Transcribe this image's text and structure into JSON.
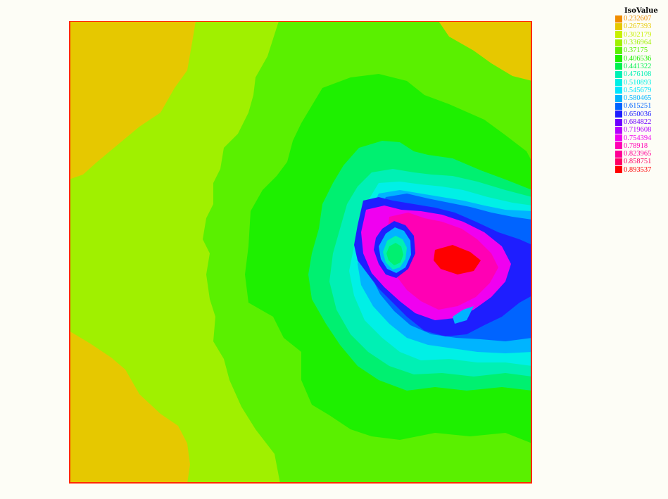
{
  "chart_data": {
    "type": "heatmap",
    "title": "",
    "legend": {
      "title": "IsoValue",
      "placement": "top-right",
      "levels": [
        {
          "label": "0.232607",
          "color": "#f08c00"
        },
        {
          "label": "0.267393",
          "color": "#e6c800"
        },
        {
          "label": "0.302179",
          "color": "#c8f000"
        },
        {
          "label": "0.336964",
          "color": "#a0f000"
        },
        {
          "label": "0.37175",
          "color": "#5af000"
        },
        {
          "label": "0.406536",
          "color": "#1ef000"
        },
        {
          "label": "0.441322",
          "color": "#00f050"
        },
        {
          "label": "0.476108",
          "color": "#00f0b4"
        },
        {
          "label": "0.510893",
          "color": "#00f0e6"
        },
        {
          "label": "0.545679",
          "color": "#00e6ff"
        },
        {
          "label": "0.580465",
          "color": "#00b4ff"
        },
        {
          "label": "0.615251",
          "color": "#0064ff"
        },
        {
          "label": "0.650036",
          "color": "#1e1eff"
        },
        {
          "label": "0.684822",
          "color": "#6e00ff"
        },
        {
          "label": "0.719608",
          "color": "#b400ff"
        },
        {
          "label": "0.754394",
          "color": "#f000f0"
        },
        {
          "label": "0.78918",
          "color": "#ff00b4"
        },
        {
          "label": "0.823965",
          "color": "#ff0096"
        },
        {
          "label": "0.858751",
          "color": "#ff0064"
        },
        {
          "label": "0.893537",
          "color": "#ff0000"
        }
      ]
    },
    "colors": {
      "frame": "#ff2a00",
      "corner": "#e6c800",
      "outer": "#a0f000",
      "mid": "#5af000",
      "green": "#1ef000",
      "teal": "#00f070",
      "aqua": "#00f0b4",
      "cyan": "#00f0e6",
      "skyblue": "#00b4ff",
      "blue": "#0064ff",
      "indigo": "#1e1eff",
      "magenta": "#f000f0",
      "pink": "#ff00b4",
      "red": "#ff0000"
    }
  }
}
